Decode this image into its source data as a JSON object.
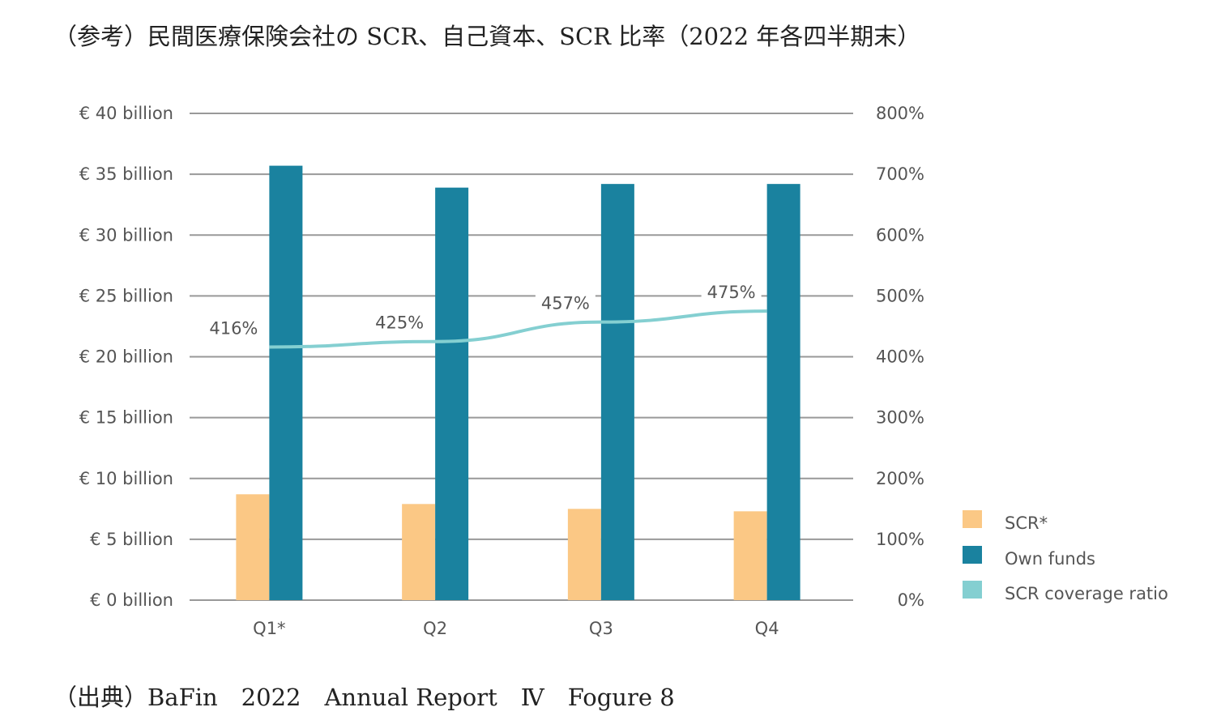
{
  "title": "（参考）民間医療保険会社の SCR、自己資本、SCR 比率（2022 年各四半期末）",
  "source": "（出典）BaFin　2022　Annual Report　Ⅳ　Fogure 8",
  "colors": {
    "scr": "#FBC885",
    "own_funds": "#1A829F",
    "ratio": "#84CFD1",
    "grid": "#999999"
  },
  "chart_data": {
    "type": "bar",
    "categories": [
      "Q1*",
      "Q2",
      "Q3",
      "Q4"
    ],
    "series": [
      {
        "name": "SCR*",
        "values": [
          8.7,
          7.9,
          7.5,
          7.3
        ],
        "axis": "left",
        "kind": "bar"
      },
      {
        "name": "Own funds",
        "values": [
          35.7,
          33.9,
          34.2,
          34.2
        ],
        "axis": "left",
        "kind": "bar"
      },
      {
        "name": "SCR coverage ratio",
        "values": [
          416,
          425,
          457,
          475
        ],
        "axis": "right",
        "kind": "line",
        "labels": [
          "416%",
          "425%",
          "457%",
          "475%"
        ]
      }
    ],
    "y_left": {
      "ylim": [
        0,
        40
      ],
      "ticks": [
        0,
        5,
        10,
        15,
        20,
        25,
        30,
        35,
        40
      ],
      "tick_labels": [
        "€ 0 billion",
        "€ 5 billion",
        "€ 10 billion",
        "€ 15 billion",
        "€ 20 billion",
        "€ 25 billion",
        "€ 30 billion",
        "€ 35 billion",
        "€ 40 billion"
      ]
    },
    "y_right": {
      "ylim": [
        0,
        800
      ],
      "ticks": [
        0,
        100,
        200,
        300,
        400,
        500,
        600,
        700,
        800
      ],
      "tick_labels": [
        "0%",
        "100%",
        "200%",
        "300%",
        "400%",
        "500%",
        "600%",
        "700%",
        "800%"
      ]
    },
    "grid": true,
    "legend": "right"
  }
}
